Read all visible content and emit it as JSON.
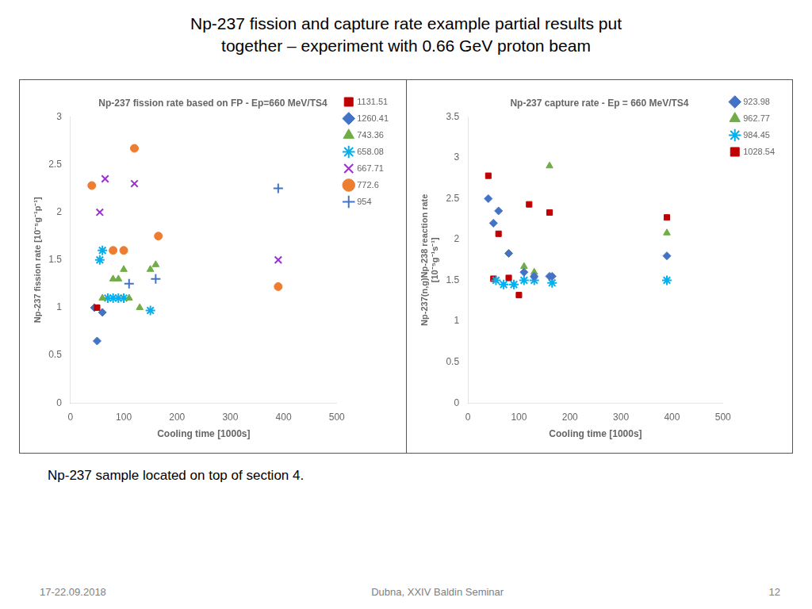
{
  "title": "Np-237 fission and capture rate example partial results put\ntogether – experiment with 0.66 GeV proton beam",
  "subtitle": "Np-237 sample located on top of section 4.",
  "annotations": [
    "17-22.09.2018",
    "Dubna, XXIV Baldin Seminar",
    "12"
  ],
  "chart_data": [
    {
      "type": "scatter",
      "title": "Np-237 fission rate based on FP - Ep=660 MeV/TS4",
      "xlabel": "Cooling time [1000s]",
      "ylabel": "Np-237 fission rate [10⁻⁵g⁻¹p⁻¹]",
      "xlim": [
        0,
        500
      ],
      "xticks": [
        0,
        100,
        200,
        300,
        400,
        500
      ],
      "ylim": [
        0,
        3
      ],
      "yticks": [
        0,
        0.5,
        1,
        1.5,
        2,
        2.5,
        3
      ],
      "grid": false,
      "legend": "right",
      "series": [
        {
          "name": "1131.51",
          "color": "#C00000",
          "marker": "square",
          "x": [
            50
          ],
          "values": [
            1.0
          ]
        },
        {
          "name": "1260.41",
          "color": "#4472C4",
          "marker": "diamond",
          "x": [
            45,
            50,
            60
          ],
          "values": [
            1.0,
            0.65,
            0.95
          ]
        },
        {
          "name": "743.36",
          "color": "#70AD47",
          "marker": "triangle",
          "x": [
            60,
            80,
            90,
            100,
            110,
            130,
            150,
            160
          ],
          "values": [
            1.1,
            1.3,
            1.3,
            1.4,
            1.1,
            1.0,
            1.4,
            1.45
          ]
        },
        {
          "name": "658.08",
          "color": "#00B0F0",
          "marker": "star",
          "x": [
            55,
            60,
            70,
            80,
            90,
            100,
            150
          ],
          "values": [
            1.5,
            1.6,
            1.1,
            1.1,
            1.1,
            1.1,
            0.97
          ]
        },
        {
          "name": "667.71",
          "color": "#9933CC",
          "marker": "x",
          "x": [
            55,
            65,
            120,
            390
          ],
          "values": [
            2.0,
            2.35,
            2.3,
            1.5
          ]
        },
        {
          "name": "772.6",
          "color": "#ED7D31",
          "marker": "circle",
          "x": [
            40,
            80,
            100,
            120,
            165,
            390
          ],
          "values": [
            2.28,
            1.6,
            1.6,
            2.67,
            1.75,
            1.22
          ]
        },
        {
          "name": "954",
          "color": "#4472C4",
          "marker": "plus",
          "x": [
            110,
            160,
            390
          ],
          "values": [
            1.25,
            1.3,
            2.25
          ]
        }
      ]
    },
    {
      "type": "scatter",
      "title": "Np-237 capture rate - Ep = 660 MeV/TS4",
      "xlabel": "Cooling time [1000s]",
      "ylabel": "Np-237(n,g)Np-238 reaction rate\n[10⁻⁵g⁻¹s⁻¹]",
      "xlim": [
        0,
        500
      ],
      "xticks": [
        0,
        100,
        200,
        300,
        400,
        500
      ],
      "ylim": [
        0,
        3.5
      ],
      "yticks": [
        0,
        0.5,
        1,
        1.5,
        2,
        2.5,
        3,
        3.5
      ],
      "grid": false,
      "legend": "right",
      "series": [
        {
          "name": "923.98",
          "color": "#4472C4",
          "marker": "diamond",
          "x": [
            40,
            50,
            60,
            80,
            110,
            130,
            160,
            165,
            390
          ],
          "values": [
            2.5,
            2.2,
            2.35,
            1.83,
            1.6,
            1.55,
            1.55,
            1.55,
            1.8
          ]
        },
        {
          "name": "962.77",
          "color": "#70AD47",
          "marker": "triangle",
          "x": [
            110,
            130,
            160,
            390
          ],
          "values": [
            1.67,
            1.6,
            2.9,
            2.08
          ]
        },
        {
          "name": "984.45",
          "color": "#00B0F0",
          "marker": "star",
          "x": [
            55,
            70,
            90,
            110,
            130,
            165,
            390
          ],
          "values": [
            1.5,
            1.45,
            1.45,
            1.5,
            1.5,
            1.47,
            1.5
          ]
        },
        {
          "name": "1028.54",
          "color": "#C00000",
          "marker": "square",
          "x": [
            40,
            50,
            60,
            80,
            100,
            120,
            160,
            390
          ],
          "values": [
            2.78,
            1.52,
            2.07,
            1.53,
            1.32,
            2.43,
            2.33,
            2.27
          ]
        }
      ]
    }
  ]
}
